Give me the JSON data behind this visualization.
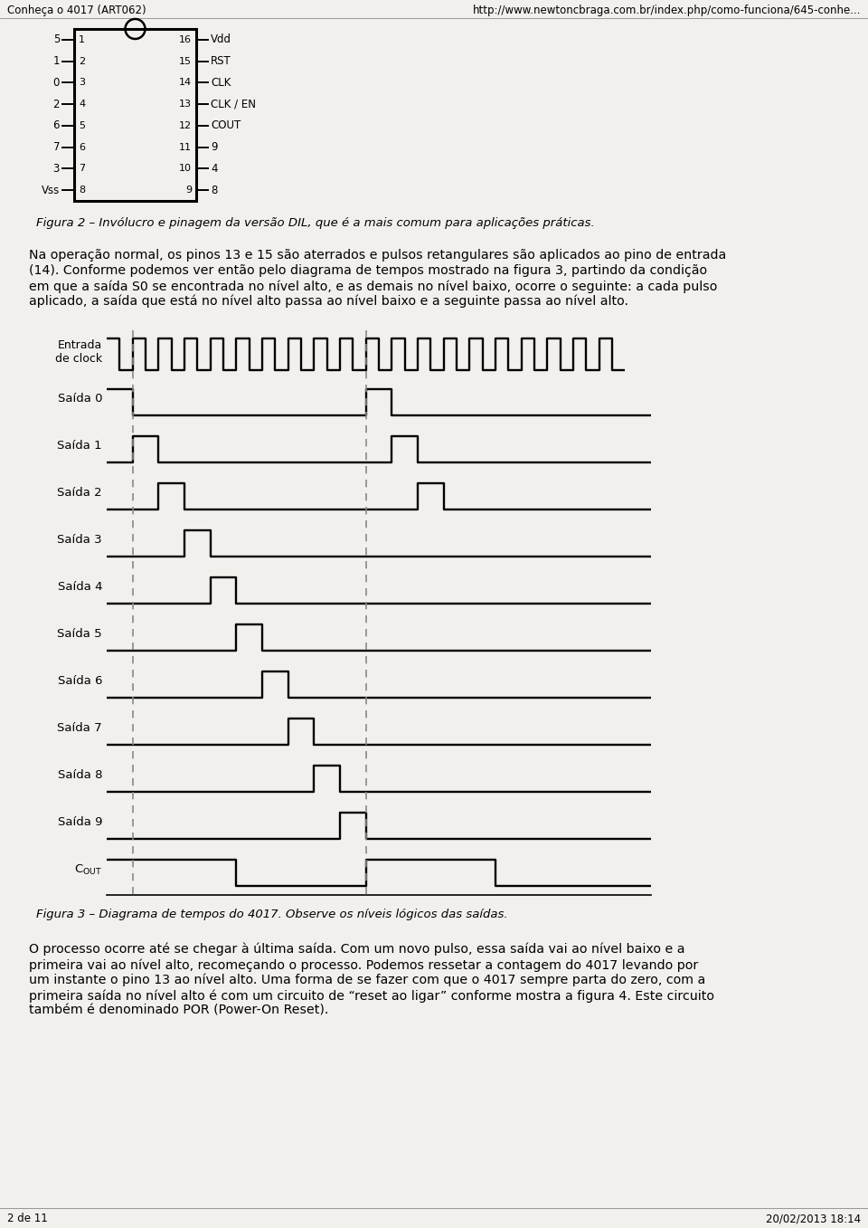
{
  "bg_color": "#f2f0ec",
  "page_header_left": "Conheça o 4017 (ART062)",
  "page_header_right": "http://www.newtoncbraga.com.br/index.php/como-funciona/645-conhe...",
  "page_footer_left": "2 de 11",
  "page_footer_right": "20/02/2013 18:14",
  "text1_line1": "Na operação normal, os pinos 13 e 15 são aterrados e pulsos retangulares são aplicados ao pino de entrada",
  "text1_line2": "(14). Conforme podemos ver então pelo diagrama de tempos mostrado na figura 3, partindo da condição",
  "text1_line3": "em que a saída S0 se encontrada no nível alto, e as demais no nível baixo, ocorre o seguinte: a cada pulso",
  "text1_line4": "aplicado, a saída que está no nível alto passa ao nível baixo e a seguinte passa ao nível alto.",
  "fig2_caption": "Figura 2 – Invólucro e pinagem da versão DIL, que é a mais comum para aplicações práticas.",
  "fig3_caption": "Figura 3 – Diagrama de tempos do 4017. Observe os níveis lógicos das saídas.",
  "text2_line1": "O processo ocorre até se chegar à última saída. Com um novo pulso, essa saída vai ao nível baixo e a",
  "text2_line2": "primeira vai ao nível alto, recomeçando o processo. Podemos ressetar a contagem do 4017 levando por",
  "text2_line3": "um instante o pino 13 ao nível alto. Uma forma de se fazer com que o 4017 sempre parta do zero, com a",
  "text2_line4": "primeira saída no nível alto é com um circuito de “reset ao ligar” conforme mostra a figura 4. Este circuito",
  "text2_line5": "também é denominado POR (Power-On Reset).",
  "ic_left_labels": [
    "5",
    "1",
    "0",
    "2",
    "6",
    "7",
    "3",
    "Vss"
  ],
  "ic_left_pins": [
    "1",
    "2",
    "3",
    "4",
    "5",
    "6",
    "7",
    "8"
  ],
  "ic_right_pins": [
    "16",
    "15",
    "14",
    "13",
    "12",
    "11",
    "10",
    "9"
  ],
  "ic_right_labels": [
    "Vdd",
    "RST",
    "CLK",
    "CLK / EN",
    "COUT",
    "9",
    "4",
    "8"
  ],
  "n_steps": 21,
  "dashed_steps": [
    1,
    10
  ],
  "output_patterns": [
    [
      [
        0,
        1,
        1
      ],
      [
        1,
        10,
        0
      ],
      [
        10,
        11,
        1
      ],
      [
        11,
        21,
        0
      ]
    ],
    [
      [
        0,
        1,
        0
      ],
      [
        1,
        2,
        1
      ],
      [
        2,
        11,
        0
      ],
      [
        11,
        12,
        1
      ],
      [
        12,
        21,
        0
      ]
    ],
    [
      [
        0,
        2,
        0
      ],
      [
        2,
        3,
        1
      ],
      [
        3,
        12,
        0
      ],
      [
        12,
        13,
        1
      ],
      [
        13,
        21,
        0
      ]
    ],
    [
      [
        0,
        3,
        0
      ],
      [
        3,
        4,
        1
      ],
      [
        4,
        21,
        0
      ]
    ],
    [
      [
        0,
        4,
        0
      ],
      [
        4,
        5,
        1
      ],
      [
        5,
        21,
        0
      ]
    ],
    [
      [
        0,
        5,
        0
      ],
      [
        5,
        6,
        1
      ],
      [
        6,
        21,
        0
      ]
    ],
    [
      [
        0,
        6,
        0
      ],
      [
        6,
        7,
        1
      ],
      [
        7,
        21,
        0
      ]
    ],
    [
      [
        0,
        7,
        0
      ],
      [
        7,
        8,
        1
      ],
      [
        8,
        21,
        0
      ]
    ],
    [
      [
        0,
        8,
        0
      ],
      [
        8,
        9,
        1
      ],
      [
        9,
        21,
        0
      ]
    ],
    [
      [
        0,
        9,
        0
      ],
      [
        9,
        10,
        1
      ],
      [
        10,
        21,
        0
      ]
    ],
    [
      [
        0,
        5,
        1
      ],
      [
        5,
        10,
        0
      ],
      [
        10,
        15,
        1
      ],
      [
        15,
        21,
        0
      ]
    ]
  ],
  "output_labels": [
    "Saída 0",
    "Saída 1",
    "Saída 2",
    "Saída 3",
    "Saída 4",
    "Saída 5",
    "Saída 6",
    "Saída 7",
    "Saída 8",
    "Saída 9",
    "C_OUT"
  ]
}
